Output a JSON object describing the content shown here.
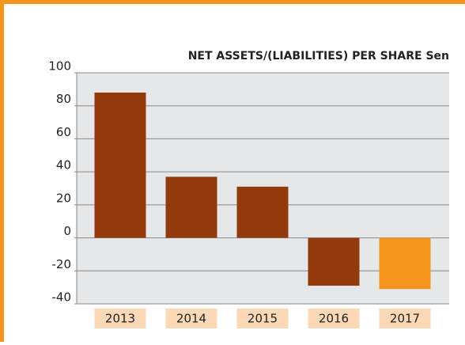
{
  "chart_data": {
    "type": "bar",
    "title": "NET ASSETS/(LIABILITIES) PER SHARE Sen",
    "categories": [
      "2013",
      "2014",
      "2015",
      "2016",
      "2017"
    ],
    "values": [
      88,
      37,
      31,
      -29,
      -31
    ],
    "colors": [
      "#923a0c",
      "#923a0c",
      "#923a0c",
      "#923a0c",
      "#f7941d"
    ],
    "ylim": [
      -40,
      100
    ],
    "yticks": [
      -40,
      -20,
      0,
      20,
      40,
      60,
      80,
      100
    ],
    "grid": true
  }
}
